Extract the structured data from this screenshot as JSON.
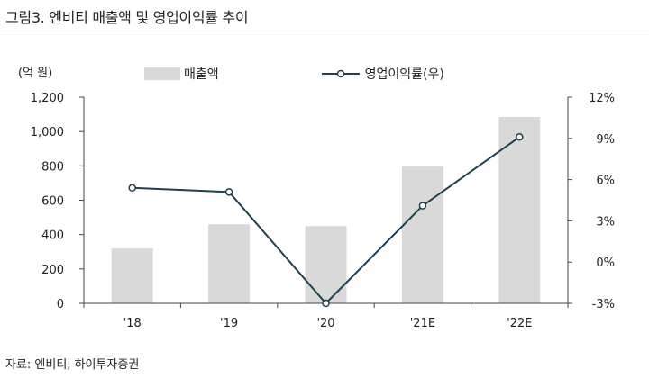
{
  "figure": {
    "title": "그림3. 엔비티 매출액 및 영업이익률 추이",
    "unit": "(억 원)",
    "source": "자료: 엔비티, 하이투자증권"
  },
  "chart_data": {
    "type": "bar",
    "categories": [
      "'18",
      "'19",
      "'20",
      "'21E",
      "'22E"
    ],
    "series": [
      {
        "name": "매출액",
        "type": "bar",
        "axis": "left",
        "color": "#d9d9d9",
        "values": [
          320,
          460,
          450,
          800,
          1085
        ]
      },
      {
        "name": "영업이익률(우)",
        "type": "line",
        "axis": "right",
        "color": "#1f3f4f",
        "values": [
          5.4,
          5.1,
          -3.0,
          4.1,
          9.1
        ]
      }
    ],
    "left_axis": {
      "ylim": [
        0,
        1200
      ],
      "ticks": [
        0,
        200,
        400,
        600,
        800,
        1000,
        1200
      ],
      "tick_labels": [
        "0",
        "200",
        "400",
        "600",
        "800",
        "1,000",
        "1,200"
      ]
    },
    "right_axis": {
      "ylim": [
        -3,
        12
      ],
      "ticks": [
        -3,
        0,
        3,
        6,
        9,
        12
      ],
      "tick_labels": [
        "-3%",
        "0%",
        "3%",
        "6%",
        "9%",
        "12%"
      ]
    },
    "legend": "top",
    "grid": false
  }
}
